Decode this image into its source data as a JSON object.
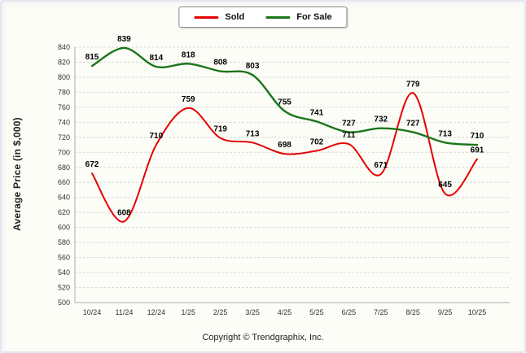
{
  "chart_data": {
    "type": "line",
    "title": "",
    "xlabel": "",
    "ylabel": "Average Price (in $,000)",
    "categories": [
      "10/24",
      "11/24",
      "12/24",
      "1/25",
      "2/25",
      "3/25",
      "4/25",
      "5/25",
      "6/25",
      "7/25",
      "8/25",
      "9/25",
      "10/25"
    ],
    "series": [
      {
        "name": "Sold",
        "color": "#e60000",
        "width": 2,
        "values": [
          672,
          608,
          710,
          759,
          719,
          713,
          698,
          702,
          711,
          671,
          779,
          645,
          691
        ]
      },
      {
        "name": "For Sale",
        "color": "#1a751a",
        "width": 2.4,
        "values": [
          815,
          839,
          814,
          818,
          808,
          803,
          755,
          741,
          727,
          732,
          727,
          713,
          710
        ]
      }
    ],
    "ylim": [
      500,
      840
    ],
    "ytick_step": 20,
    "grid": true,
    "legend_position": "top"
  },
  "footer": "Copyright © Trendgraphix, Inc."
}
